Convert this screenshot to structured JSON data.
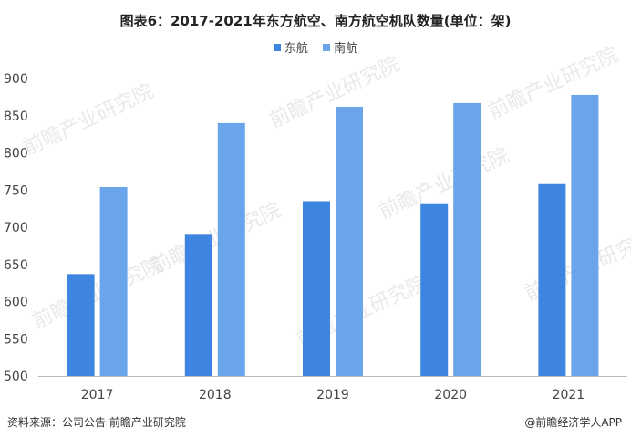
{
  "title": "图表6：2017-2021年东方航空、南方航空机队数量(单位：架)",
  "footer": {
    "source": "资料来源：公司公告 前瞻产业研究院",
    "credit": "@前瞻经济学人APP"
  },
  "watermark": "前瞻产业研究院",
  "colors": {
    "series1": "#3d85e0",
    "series2": "#6aa4ea"
  },
  "chart_data": {
    "type": "bar",
    "title": "图表6：2017-2021年东方航空、南方航空机队数量(单位：架)",
    "xlabel": "",
    "ylabel": "",
    "categories": [
      "2017",
      "2018",
      "2019",
      "2020",
      "2021"
    ],
    "series": [
      {
        "name": "东航",
        "values": [
          637,
          691,
          735,
          731,
          758
        ]
      },
      {
        "name": "南航",
        "values": [
          754,
          840,
          862,
          867,
          878
        ]
      }
    ],
    "ylim": [
      500,
      900
    ],
    "yticks": [
      500,
      550,
      600,
      650,
      700,
      750,
      800,
      850,
      900
    ],
    "legend": "top-center",
    "grid": false
  }
}
